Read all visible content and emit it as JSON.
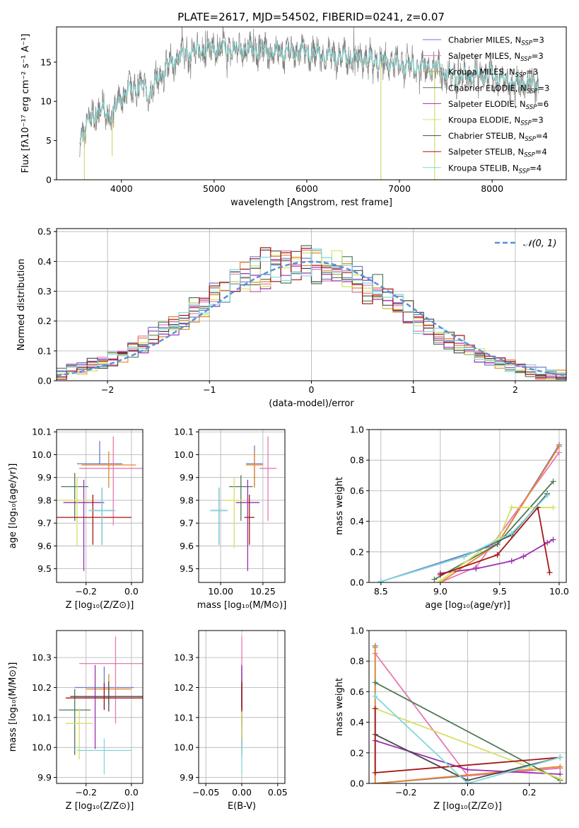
{
  "figure": {
    "title": "PLATE=2617, MJD=54502, FIBERID=0241, z=0.07"
  },
  "series_styles": [
    {
      "name": "Chabrier MILES",
      "nssp": "3",
      "color": "#6a7ec4"
    },
    {
      "name": "Salpeter MILES",
      "nssp": "3",
      "color": "#e878b0"
    },
    {
      "name": "Kroupa MILES",
      "nssp": "3",
      "color": "#e8852a"
    },
    {
      "name": "Chabrier ELODIE",
      "nssp": "3",
      "color": "#4e7a55"
    },
    {
      "name": "Salpeter ELODIE",
      "nssp": "6",
      "color": "#9a30b0"
    },
    {
      "name": "Kroupa ELODIE",
      "nssp": "3",
      "color": "#d4e060"
    },
    {
      "name": "Chabrier STELIB",
      "nssp": "4",
      "color": "#4a4a4a"
    },
    {
      "name": "Salpeter STELIB",
      "nssp": "4",
      "color": "#a51515"
    },
    {
      "name": "Kroupa STELIB",
      "nssp": "4",
      "color": "#7fd8dc"
    }
  ],
  "chart_data": [
    {
      "id": "spectrum",
      "type": "line",
      "xlabel": "wavelength [Angstrom, rest frame]",
      "ylabel": "Flux [fλ10⁻¹⁷ erg cm⁻² s⁻¹ A⁻¹]",
      "xlim": [
        3300,
        8800
      ],
      "ylim": [
        0,
        19.5
      ],
      "xticks": [
        4000,
        5000,
        6000,
        7000,
        8000
      ],
      "yticks": [
        0,
        5,
        10,
        15
      ],
      "data_color": "#808080",
      "model_colors": [
        "#e8852a",
        "#7fd8dc"
      ],
      "continuum": {
        "x": [
          3550,
          3600,
          3700,
          3800,
          3900,
          4000,
          4100,
          4200,
          4300,
          4400,
          4500,
          4600,
          4700,
          4800,
          5000,
          5200,
          5400,
          5600,
          5800,
          6000,
          6200,
          6400,
          6600,
          6800,
          7000,
          7200,
          7400,
          7600,
          7800,
          8000,
          8200,
          8400,
          8500
        ],
        "y": [
          5.5,
          6.2,
          8.5,
          8.8,
          8.2,
          10.5,
          11.5,
          12.0,
          11.0,
          13.0,
          14.5,
          15.5,
          16.2,
          16.4,
          16.8,
          16.5,
          16.6,
          16.4,
          16.2,
          16.3,
          15.8,
          15.6,
          15.4,
          15.2,
          14.6,
          14.4,
          14.2,
          13.0,
          13.3,
          13.4,
          12.4,
          12.2,
          12.2
        ]
      }
    },
    {
      "id": "residuals",
      "type": "bar",
      "xlabel": "(data-model)/error",
      "ylabel": "Normed distribution",
      "xlim": [
        -2.5,
        2.5
      ],
      "ylim": [
        0,
        0.51
      ],
      "xticks": [
        -2,
        -1,
        0,
        1,
        2
      ],
      "yticks": [
        0.0,
        0.1,
        0.2,
        0.3,
        0.4,
        0.5
      ],
      "grid": true,
      "bin_width": 0.1,
      "legend": {
        "label": "𝒩(0, 1)",
        "position": "top-right"
      },
      "gaussian": {
        "mean": 0,
        "sigma": 1,
        "color": "#5b8fd6"
      }
    },
    {
      "id": "age-vs-Z",
      "type": "scatter",
      "xlabel": "Z [log₁₀(Z/Z⊙)]",
      "ylabel": "age  [log₁₀(age/yr)]",
      "xlim": [
        -0.33,
        0.05
      ],
      "ylim": [
        9.44,
        10.11
      ],
      "xticks": [
        -0.2,
        0.0
      ],
      "yticks": [
        9.5,
        9.6,
        9.7,
        9.8,
        9.9,
        10.0,
        10.1
      ],
      "grid": true,
      "points": [
        {
          "x": -0.14,
          "y": 9.96,
          "xerr": 0.1,
          "yerr": [
            0.0,
            0.1
          ]
        },
        {
          "x": -0.08,
          "y": 9.94,
          "xerr": 0.15,
          "yerr": [
            0.25,
            0.14
          ]
        },
        {
          "x": -0.1,
          "y": 9.955,
          "xerr": 0.12,
          "yerr": [
            0.1,
            0.06
          ]
        },
        {
          "x": -0.25,
          "y": 9.86,
          "xerr": 0.06,
          "yerr": [
            0.15,
            0.06
          ]
        },
        {
          "x": -0.21,
          "y": 9.79,
          "xerr": 0.09,
          "yerr": [
            0.3,
            0.1
          ]
        },
        {
          "x": -0.24,
          "y": 9.8,
          "xerr": 0.08,
          "yerr": [
            0.2,
            0.1
          ]
        },
        {
          "x": -0.13,
          "y": 9.755,
          "xerr": 0.05,
          "yerr": [
            0.15,
            0.1
          ]
        },
        {
          "x": -0.17,
          "y": 9.725,
          "xerr": 0.17,
          "yerr": [
            0.12,
            0.1
          ]
        },
        {
          "x": -0.13,
          "y": 9.755,
          "xerr": 0.06,
          "yerr": [
            0.15,
            0.1
          ]
        }
      ]
    },
    {
      "id": "age-vs-mass",
      "type": "scatter",
      "xlabel": "mass [log₁₀(M/M⊙)]",
      "ylabel": "",
      "xlim": [
        9.87,
        10.38
      ],
      "ylim": [
        9.44,
        10.11
      ],
      "xticks": [
        10.0,
        10.25
      ],
      "yticks": [
        9.5,
        9.6,
        9.7,
        9.8,
        9.9,
        10.0,
        10.1
      ],
      "grid": true,
      "points": [
        {
          "x": 10.2,
          "y": 9.96,
          "xerr": 0.05,
          "yerr": [
            0.1,
            0.08
          ]
        },
        {
          "x": 10.28,
          "y": 9.94,
          "xerr": 0.05,
          "yerr": [
            0.23,
            0.14
          ]
        },
        {
          "x": 10.2,
          "y": 9.955,
          "xerr": 0.05,
          "yerr": [
            0.1,
            0.06
          ]
        },
        {
          "x": 10.12,
          "y": 9.86,
          "xerr": 0.07,
          "yerr": [
            0.15,
            0.05
          ]
        },
        {
          "x": 10.16,
          "y": 9.79,
          "xerr": 0.07,
          "yerr": [
            0.3,
            0.1
          ]
        },
        {
          "x": 10.08,
          "y": 9.8,
          "xerr": 0.06,
          "yerr": [
            0.21,
            0.1
          ]
        },
        {
          "x": 9.99,
          "y": 9.755,
          "xerr": 0.05,
          "yerr": [
            0.15,
            0.1
          ]
        },
        {
          "x": 10.17,
          "y": 9.725,
          "xerr": 0.03,
          "yerr": [
            0.12,
            0.1
          ]
        },
        {
          "x": 9.99,
          "y": 9.755,
          "xerr": 0.05,
          "yerr": [
            0.15,
            0.1
          ]
        }
      ]
    },
    {
      "id": "mass-weight-vs-age",
      "type": "line",
      "xlabel": "age  [log₁₀(age/yr)]",
      "ylabel": "mass weight",
      "xlim": [
        8.4,
        10.06
      ],
      "ylim": [
        0,
        1.0
      ],
      "xticks": [
        8.5,
        9.0,
        9.5,
        10.0
      ],
      "yticks": [
        0.0,
        0.2,
        0.4,
        0.6,
        0.8,
        1.0
      ],
      "grid": true,
      "series": [
        {
          "x": [
            8.5,
            9.48,
            10.0
          ],
          "y": [
            0.005,
            0.25,
            0.9
          ]
        },
        {
          "x": [
            9.0,
            9.3,
            10.0
          ],
          "y": [
            0.0,
            0.1,
            0.85
          ]
        },
        {
          "x": [
            9.0,
            9.48,
            10.0
          ],
          "y": [
            0.0,
            0.25,
            0.89
          ]
        },
        {
          "x": [
            8.95,
            9.48,
            9.95
          ],
          "y": [
            0.02,
            0.25,
            0.66
          ]
        },
        {
          "x": [
            9.0,
            9.3,
            9.6,
            9.7,
            9.9,
            9.95
          ],
          "y": [
            0.06,
            0.09,
            0.14,
            0.17,
            0.26,
            0.28
          ]
        },
        {
          "x": [
            9.0,
            9.5,
            9.6,
            9.95
          ],
          "y": [
            0.01,
            0.3,
            0.49,
            0.49
          ]
        },
        {
          "x": [
            9.2,
            9.6,
            9.9
          ],
          "y": [
            0.17,
            0.31,
            0.58
          ]
        },
        {
          "x": [
            9.0,
            9.48,
            9.82,
            9.92
          ],
          "y": [
            0.05,
            0.18,
            0.49,
            0.065
          ]
        },
        {
          "x": [
            8.5,
            9.2,
            9.6,
            9.9
          ],
          "y": [
            0.005,
            0.17,
            0.32,
            0.57
          ]
        }
      ]
    },
    {
      "id": "mass-vs-Z",
      "type": "scatter",
      "xlabel": "Z [log₁₀(Z/Z⊙)]",
      "ylabel": "mass [log₁₀(M/M⊙)]",
      "xlim": [
        -0.33,
        0.05
      ],
      "ylim": [
        9.88,
        10.39
      ],
      "xticks": [
        -0.2,
        0.0
      ],
      "yticks": [
        9.9,
        10.0,
        10.1,
        10.2,
        10.3
      ],
      "grid": true,
      "points": [
        {
          "x": -0.12,
          "y": 10.2,
          "xerr": 0.13,
          "yerr": [
            0.07,
            0.07
          ]
        },
        {
          "x": -0.07,
          "y": 10.28,
          "xerr": 0.16,
          "yerr": [
            0.2,
            0.09
          ]
        },
        {
          "x": -0.1,
          "y": 10.195,
          "xerr": 0.1,
          "yerr": [
            0.05,
            0.05
          ]
        },
        {
          "x": -0.25,
          "y": 10.125,
          "xerr": 0.07,
          "yerr": [
            0.15,
            0.07
          ]
        },
        {
          "x": -0.16,
          "y": 10.165,
          "xerr": 0.09,
          "yerr": [
            0.17,
            0.11
          ]
        },
        {
          "x": -0.23,
          "y": 10.08,
          "xerr": 0.06,
          "yerr": [
            0.12,
            0.05
          ]
        },
        {
          "x": -0.1,
          "y": 10.17,
          "xerr": 0.17,
          "yerr": [
            0.05,
            0.05
          ]
        },
        {
          "x": -0.12,
          "y": 10.165,
          "xerr": 0.17,
          "yerr": [
            0.04,
            0.05
          ]
        },
        {
          "x": -0.12,
          "y": 9.99,
          "xerr": 0.12,
          "yerr": [
            0.08,
            0.04
          ]
        }
      ]
    },
    {
      "id": "mass-vs-ebv",
      "type": "scatter",
      "xlabel": "E(B-V)",
      "ylabel": "",
      "xlim": [
        -0.06,
        0.06
      ],
      "ylim": [
        9.88,
        10.39
      ],
      "xticks": [
        -0.05,
        0.0,
        0.05
      ],
      "yticks": [
        9.9,
        10.0,
        10.1,
        10.2,
        10.3
      ],
      "grid": true,
      "points": [
        {
          "x": 0.0,
          "y": 10.2,
          "xerr": 0.0,
          "yerr": [
            0.07,
            0.07
          ]
        },
        {
          "x": 0.0,
          "y": 10.28,
          "xerr": 0.0,
          "yerr": [
            0.2,
            0.09
          ]
        },
        {
          "x": 0.0,
          "y": 10.195,
          "xerr": 0.0,
          "yerr": [
            0.05,
            0.05
          ]
        },
        {
          "x": 0.0,
          "y": 10.125,
          "xerr": 0.0,
          "yerr": [
            0.15,
            0.07
          ]
        },
        {
          "x": 0.0,
          "y": 10.165,
          "xerr": 0.0,
          "yerr": [
            0.17,
            0.11
          ]
        },
        {
          "x": 0.0,
          "y": 10.08,
          "xerr": 0.0,
          "yerr": [
            0.12,
            0.05
          ]
        },
        {
          "x": 0.0,
          "y": 10.17,
          "xerr": 0.0,
          "yerr": [
            0.05,
            0.05
          ]
        },
        {
          "x": 0.0,
          "y": 10.165,
          "xerr": 0.0,
          "yerr": [
            0.04,
            0.05
          ]
        },
        {
          "x": 0.0,
          "y": 9.99,
          "xerr": 0.0,
          "yerr": [
            0.08,
            0.04
          ]
        }
      ]
    },
    {
      "id": "mass-weight-vs-Z",
      "type": "line",
      "xlabel": "Z [log₁₀(Z/Z⊙)]",
      "ylabel": "mass weight",
      "xlim": [
        -0.32,
        0.32
      ],
      "ylim": [
        0,
        1.0
      ],
      "xticks": [
        -0.2,
        0.0,
        0.2
      ],
      "yticks": [
        0.0,
        0.2,
        0.4,
        0.6,
        0.8,
        1.0
      ],
      "grid": true,
      "series": [
        {
          "x": [
            -0.3,
            -0.3,
            0.3
          ],
          "y": [
            0.9,
            0.0,
            0.1
          ]
        },
        {
          "x": [
            -0.3,
            0.0,
            0.3
          ],
          "y": [
            0.85,
            0.05,
            0.1
          ]
        },
        {
          "x": [
            -0.3,
            -0.3,
            0.3
          ],
          "y": [
            0.89,
            0.0,
            0.11
          ]
        },
        {
          "x": [
            -0.3,
            0.3
          ],
          "y": [
            0.66,
            0.02
          ]
        },
        {
          "x": [
            -0.3,
            0.0,
            0.3
          ],
          "y": [
            0.28,
            0.09,
            0.06
          ]
        },
        {
          "x": [
            -0.3,
            0.3
          ],
          "y": [
            0.49,
            0.03
          ]
        },
        {
          "x": [
            -0.3,
            0.0,
            0.3
          ],
          "y": [
            0.32,
            0.02,
            0.17
          ]
        },
        {
          "x": [
            -0.3,
            -0.3,
            0.3
          ],
          "y": [
            0.49,
            0.07,
            0.17
          ]
        },
        {
          "x": [
            -0.3,
            0.0,
            0.3
          ],
          "y": [
            0.57,
            0.0,
            0.17
          ]
        }
      ]
    }
  ]
}
